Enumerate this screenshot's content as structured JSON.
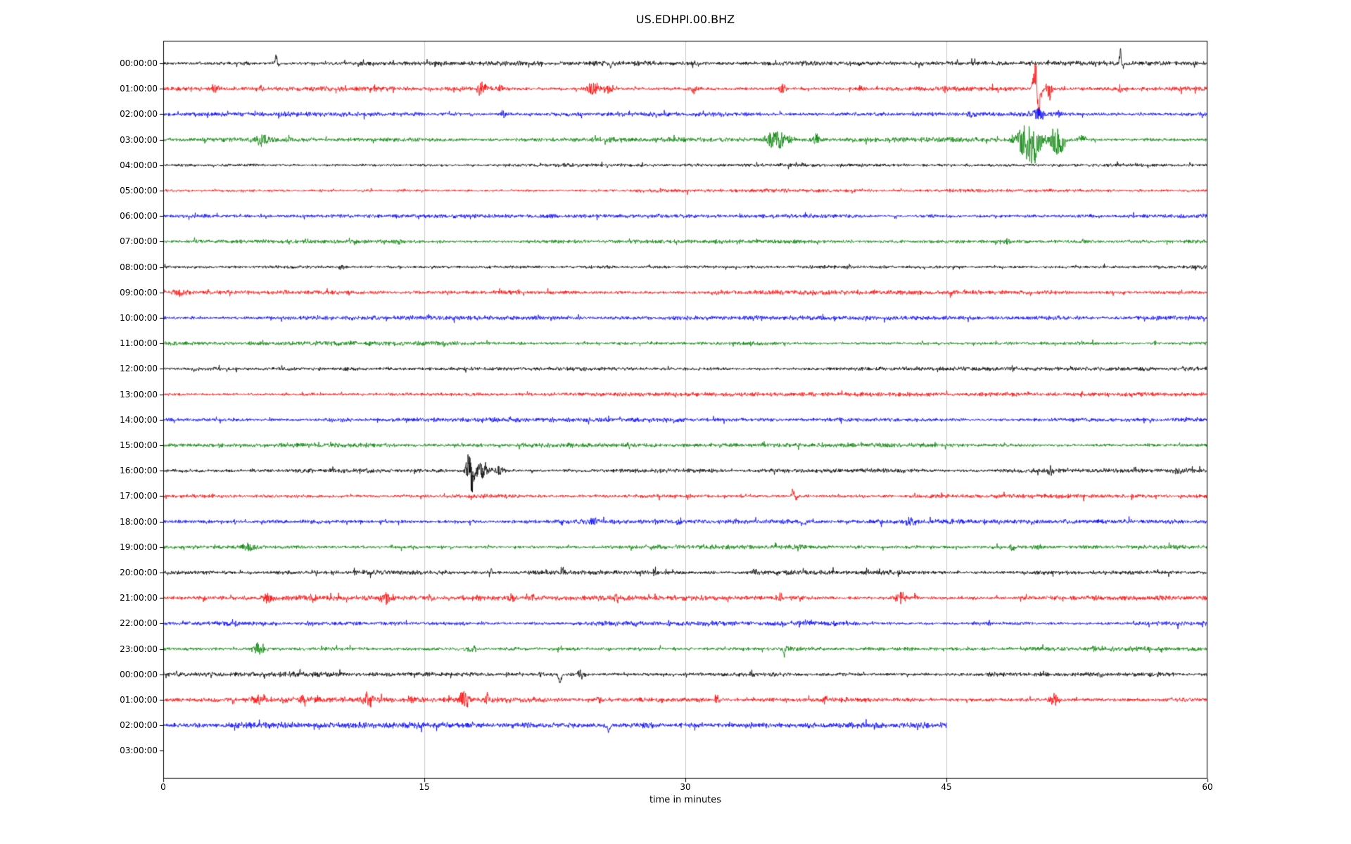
{
  "chart_data": {
    "type": "line",
    "subtype": "seismogram-dayplot",
    "title": "US.EDHPI.00.BHZ",
    "xlabel": "time in minutes",
    "xlim": [
      0,
      60
    ],
    "xtick_values": [
      0,
      15,
      30,
      45,
      60
    ],
    "xticks": [
      "0",
      "15",
      "30",
      "45",
      "60"
    ],
    "grid_x": [
      15,
      30,
      45
    ],
    "grid_color": "#cccccc",
    "border_color": "#000000",
    "trace_colors_cycle": [
      "#000000",
      "#ff0000",
      "#0000ff",
      "#008000"
    ],
    "rows": [
      {
        "label": "00:00:00",
        "color": "#000000",
        "noise": 2.8,
        "end": 60,
        "events": [
          {
            "t": 6.5,
            "amp": 20,
            "w": 0.06,
            "dir": 1
          },
          {
            "t": 6.58,
            "amp": 9,
            "w": 0.06,
            "dir": -1
          },
          {
            "t": 25.7,
            "amp": 9,
            "w": 0.05,
            "dir": -1
          },
          {
            "t": 43.6,
            "amp": 5,
            "w": 0.08,
            "dir": 0
          },
          {
            "t": 55.0,
            "amp": 24,
            "w": 0.06,
            "dir": 1
          },
          {
            "t": 55.12,
            "amp": 10,
            "w": 0.06,
            "dir": -1
          }
        ]
      },
      {
        "label": "01:00:00",
        "color": "#ff0000",
        "noise": 3.0,
        "end": 60,
        "events": [
          {
            "t": 3.0,
            "amp": 6,
            "w": 0.15,
            "dir": 0
          },
          {
            "t": 5.6,
            "amp": 5,
            "w": 0.1,
            "dir": 0
          },
          {
            "t": 18.3,
            "amp": 10,
            "w": 0.25,
            "dir": 0
          },
          {
            "t": 19.4,
            "amp": 6,
            "w": 0.15,
            "dir": 0
          },
          {
            "t": 24.7,
            "amp": 11,
            "w": 0.3,
            "dir": 0
          },
          {
            "t": 25.6,
            "amp": 8,
            "w": 0.2,
            "dir": 0
          },
          {
            "t": 30.5,
            "amp": 8,
            "w": 0.12,
            "dir": 0
          },
          {
            "t": 35.6,
            "amp": 9,
            "w": 0.15,
            "dir": 0
          },
          {
            "t": 40.1,
            "amp": 6,
            "w": 0.1,
            "dir": 0
          },
          {
            "t": 44.9,
            "amp": 5,
            "w": 0.1,
            "dir": 0
          },
          {
            "t": 50.1,
            "amp": 58,
            "w": 0.1,
            "dir": 1
          },
          {
            "t": 50.28,
            "amp": 44,
            "w": 0.12,
            "dir": -1
          },
          {
            "t": 50.9,
            "amp": 18,
            "w": 0.12,
            "dir": 0
          },
          {
            "t": 55.0,
            "amp": 5,
            "w": 0.1,
            "dir": 0
          }
        ]
      },
      {
        "label": "02:00:00",
        "color": "#0000ff",
        "noise": 2.9,
        "end": 60,
        "events": [
          {
            "t": 19.6,
            "amp": 7,
            "w": 0.15,
            "dir": 0
          },
          {
            "t": 46.3,
            "amp": 5,
            "w": 0.1,
            "dir": 0
          },
          {
            "t": 50.3,
            "amp": 9,
            "w": 0.3,
            "dir": 0
          },
          {
            "t": 51.5,
            "amp": 6,
            "w": 0.15,
            "dir": 0
          }
        ]
      },
      {
        "label": "03:00:00",
        "color": "#008000",
        "noise": 2.9,
        "end": 60,
        "events": [
          {
            "t": 5.7,
            "amp": 8,
            "w": 0.3,
            "dir": 0
          },
          {
            "t": 35.3,
            "amp": 13,
            "w": 0.5,
            "dir": 0
          },
          {
            "t": 37.5,
            "amp": 10,
            "w": 0.15,
            "dir": 0
          },
          {
            "t": 49.7,
            "amp": 26,
            "w": 0.5,
            "dir": 0
          },
          {
            "t": 50.0,
            "amp": 18,
            "w": 0.3,
            "dir": -1
          },
          {
            "t": 51.3,
            "amp": 22,
            "w": 0.25,
            "dir": 0
          },
          {
            "t": 51.6,
            "amp": 15,
            "w": 0.2,
            "dir": -1
          },
          {
            "t": 52.8,
            "amp": 7,
            "w": 0.15,
            "dir": 0
          }
        ]
      },
      {
        "label": "04:00:00",
        "color": "#000000",
        "noise": 2.1,
        "end": 60,
        "events": []
      },
      {
        "label": "05:00:00",
        "color": "#ff0000",
        "noise": 2.1,
        "end": 60,
        "events": []
      },
      {
        "label": "06:00:00",
        "color": "#0000ff",
        "noise": 2.4,
        "end": 60,
        "events": []
      },
      {
        "label": "07:00:00",
        "color": "#008000",
        "noise": 2.4,
        "end": 60,
        "events": [
          {
            "t": 13.5,
            "amp": 4,
            "w": 0.2,
            "dir": 0
          },
          {
            "t": 48.5,
            "amp": 4,
            "w": 0.15,
            "dir": 0
          }
        ]
      },
      {
        "label": "08:00:00",
        "color": "#000000",
        "noise": 2.6,
        "end": 60,
        "events": [
          {
            "t": 10.2,
            "amp": 4,
            "w": 0.1,
            "dir": 0
          }
        ]
      },
      {
        "label": "09:00:00",
        "color": "#ff0000",
        "noise": 2.7,
        "end": 60,
        "events": [
          {
            "t": 1.0,
            "amp": 5,
            "w": 0.4,
            "dir": 0
          },
          {
            "t": 20.4,
            "amp": 4,
            "w": 0.1,
            "dir": 0
          }
        ]
      },
      {
        "label": "10:00:00",
        "color": "#0000ff",
        "noise": 2.7,
        "end": 60,
        "events": [
          {
            "t": 21.5,
            "amp": 4,
            "w": 0.15,
            "dir": 0
          }
        ]
      },
      {
        "label": "11:00:00",
        "color": "#008000",
        "noise": 2.7,
        "end": 60,
        "events": [
          {
            "t": 57.0,
            "amp": 4,
            "w": 0.1,
            "dir": 0
          }
        ]
      },
      {
        "label": "12:00:00",
        "color": "#000000",
        "noise": 2.4,
        "end": 60,
        "events": [
          {
            "t": 1.8,
            "amp": 5,
            "w": 0.1,
            "dir": -1
          }
        ]
      },
      {
        "label": "13:00:00",
        "color": "#ff0000",
        "noise": 2.4,
        "end": 60,
        "events": []
      },
      {
        "label": "14:00:00",
        "color": "#0000ff",
        "noise": 2.6,
        "end": 60,
        "events": []
      },
      {
        "label": "15:00:00",
        "color": "#008000",
        "noise": 2.7,
        "end": 60,
        "events": []
      },
      {
        "label": "16:00:00",
        "color": "#000000",
        "noise": 2.7,
        "end": 60,
        "events": [
          {
            "t": 17.6,
            "amp": 30,
            "w": 0.15,
            "dir": 0
          },
          {
            "t": 17.78,
            "amp": 20,
            "w": 0.1,
            "dir": -1
          },
          {
            "t": 18.3,
            "amp": 12,
            "w": 0.3,
            "dir": 0
          },
          {
            "t": 19.3,
            "amp": 8,
            "w": 0.2,
            "dir": 0
          },
          {
            "t": 51.0,
            "amp": 6,
            "w": 0.12,
            "dir": 0
          },
          {
            "t": 55.8,
            "amp": 5,
            "w": 0.1,
            "dir": 0
          },
          {
            "t": 58.3,
            "amp": 6,
            "w": 0.15,
            "dir": 0
          }
        ]
      },
      {
        "label": "17:00:00",
        "color": "#ff0000",
        "noise": 2.7,
        "end": 60,
        "events": [
          {
            "t": 30.2,
            "amp": 5,
            "w": 0.1,
            "dir": 0
          },
          {
            "t": 36.2,
            "amp": 12,
            "w": 0.08,
            "dir": 1
          },
          {
            "t": 36.32,
            "amp": 6,
            "w": 0.08,
            "dir": -1
          },
          {
            "t": 49.5,
            "amp": 4,
            "w": 0.1,
            "dir": 0
          }
        ]
      },
      {
        "label": "18:00:00",
        "color": "#0000ff",
        "noise": 2.7,
        "end": 60,
        "events": [
          {
            "t": 24.6,
            "amp": 6,
            "w": 0.2,
            "dir": 0
          },
          {
            "t": 29.6,
            "amp": 5,
            "w": 0.1,
            "dir": 0
          },
          {
            "t": 36.8,
            "amp": 11,
            "w": 0.06,
            "dir": -1
          },
          {
            "t": 43.0,
            "amp": 6,
            "w": 0.25,
            "dir": 0
          },
          {
            "t": 47.2,
            "amp": 4,
            "w": 0.1,
            "dir": 0
          }
        ]
      },
      {
        "label": "19:00:00",
        "color": "#008000",
        "noise": 2.9,
        "end": 60,
        "events": [
          {
            "t": 5.0,
            "amp": 5,
            "w": 0.4,
            "dir": 0
          },
          {
            "t": 48.8,
            "amp": 6,
            "w": 0.15,
            "dir": 0
          },
          {
            "t": 50.3,
            "amp": 5,
            "w": 0.1,
            "dir": 0
          }
        ]
      },
      {
        "label": "20:00:00",
        "color": "#000000",
        "noise": 3.0,
        "end": 60,
        "events": [
          {
            "t": 11.0,
            "amp": 7,
            "w": 0.08,
            "dir": 0
          },
          {
            "t": 18.8,
            "amp": 6,
            "w": 0.1,
            "dir": 0
          },
          {
            "t": 23.0,
            "amp": 6,
            "w": 0.08,
            "dir": 0
          },
          {
            "t": 28.3,
            "amp": 9,
            "w": 0.1,
            "dir": 0
          },
          {
            "t": 34.0,
            "amp": 5,
            "w": 0.1,
            "dir": 0
          },
          {
            "t": 42.3,
            "amp": 6,
            "w": 0.1,
            "dir": 0
          }
        ]
      },
      {
        "label": "21:00:00",
        "color": "#ff0000",
        "noise": 3.1,
        "end": 60,
        "events": [
          {
            "t": 6.0,
            "amp": 7,
            "w": 0.2,
            "dir": 0
          },
          {
            "t": 8.5,
            "amp": 7,
            "w": 0.2,
            "dir": 0
          },
          {
            "t": 12.8,
            "amp": 8,
            "w": 0.3,
            "dir": 0
          },
          {
            "t": 20.0,
            "amp": 7,
            "w": 0.15,
            "dir": 0
          },
          {
            "t": 21.2,
            "amp": 6,
            "w": 0.1,
            "dir": 0
          },
          {
            "t": 26.0,
            "amp": 6,
            "w": 0.1,
            "dir": 0
          },
          {
            "t": 35.5,
            "amp": 7,
            "w": 0.1,
            "dir": 0
          },
          {
            "t": 42.3,
            "amp": 9,
            "w": 0.25,
            "dir": 0
          },
          {
            "t": 43.2,
            "amp": 6,
            "w": 0.1,
            "dir": 0
          }
        ]
      },
      {
        "label": "22:00:00",
        "color": "#0000ff",
        "noise": 2.9,
        "end": 60,
        "events": [
          {
            "t": 4.0,
            "amp": 5,
            "w": 0.2,
            "dir": 0
          },
          {
            "t": 29.0,
            "amp": 4,
            "w": 0.1,
            "dir": 0
          },
          {
            "t": 47.5,
            "amp": 5,
            "w": 0.1,
            "dir": 0
          }
        ]
      },
      {
        "label": "23:00:00",
        "color": "#008000",
        "noise": 2.9,
        "end": 60,
        "events": [
          {
            "t": 5.5,
            "amp": 9,
            "w": 0.3,
            "dir": 0
          },
          {
            "t": 17.7,
            "amp": 7,
            "w": 0.2,
            "dir": 0
          },
          {
            "t": 35.7,
            "amp": 17,
            "w": 0.06,
            "dir": -1
          },
          {
            "t": 35.78,
            "amp": 6,
            "w": 0.1,
            "dir": 1
          },
          {
            "t": 53.5,
            "amp": 5,
            "w": 0.1,
            "dir": 0
          }
        ]
      },
      {
        "label": "00:00:00",
        "color": "#000000",
        "noise": 3.1,
        "end": 60,
        "events": [
          {
            "t": 21.7,
            "amp": 5,
            "w": 0.1,
            "dir": 0
          },
          {
            "t": 22.8,
            "amp": 14,
            "w": 0.07,
            "dir": -1
          },
          {
            "t": 24.0,
            "amp": 9,
            "w": 0.12,
            "dir": 0
          },
          {
            "t": 33.8,
            "amp": 7,
            "w": 0.08,
            "dir": 0
          }
        ]
      },
      {
        "label": "01:00:00",
        "color": "#ff0000",
        "noise": 3.4,
        "end": 60,
        "events": [
          {
            "t": 5.5,
            "amp": 8,
            "w": 0.25,
            "dir": 0
          },
          {
            "t": 8.0,
            "amp": 6,
            "w": 0.15,
            "dir": 0
          },
          {
            "t": 11.8,
            "amp": 12,
            "w": 0.2,
            "dir": 0
          },
          {
            "t": 14.2,
            "amp": 7,
            "w": 0.15,
            "dir": 0
          },
          {
            "t": 17.3,
            "amp": 12,
            "w": 0.25,
            "dir": 0
          },
          {
            "t": 18.6,
            "amp": 8,
            "w": 0.15,
            "dir": 0
          },
          {
            "t": 25.0,
            "amp": 7,
            "w": 0.12,
            "dir": 0
          },
          {
            "t": 28.6,
            "amp": 5,
            "w": 0.1,
            "dir": 0
          },
          {
            "t": 31.8,
            "amp": 7,
            "w": 0.1,
            "dir": 0
          },
          {
            "t": 38.0,
            "amp": 5,
            "w": 0.1,
            "dir": 0
          },
          {
            "t": 51.2,
            "amp": 8,
            "w": 0.2,
            "dir": 0
          }
        ]
      },
      {
        "label": "02:00:00",
        "color": "#0000ff",
        "noise": 3.8,
        "end": 45,
        "events": [
          {
            "t": 25.6,
            "amp": 13,
            "w": 0.06,
            "dir": -1
          }
        ]
      },
      {
        "label": "03:00:00",
        "color": "#000000",
        "noise": 0,
        "end": 0,
        "events": []
      }
    ]
  }
}
